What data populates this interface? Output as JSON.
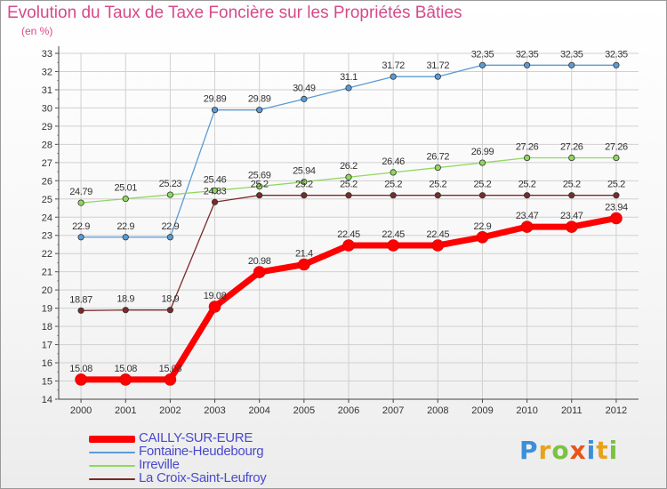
{
  "chart_data": {
    "type": "line",
    "title": "Evolution du Taux de Taxe Foncière sur les Propriétés Bâties",
    "ylabel": "(en %)",
    "xlabel": "",
    "x": [
      "2000",
      "2001",
      "2002",
      "2003",
      "2004",
      "2005",
      "2006",
      "2007",
      "2008",
      "2009",
      "2010",
      "2011",
      "2012"
    ],
    "ylim": [
      14,
      33
    ],
    "yticks": [
      14,
      15,
      16,
      17,
      18,
      19,
      20,
      21,
      22,
      23,
      24,
      25,
      26,
      27,
      28,
      29,
      30,
      31,
      32,
      33
    ],
    "grid": true,
    "legend_position": "bottom-left",
    "series": [
      {
        "name": "CAILLY-SUR-EURE",
        "color": "#ff0000",
        "values": [
          15.08,
          15.08,
          15.08,
          19.08,
          20.98,
          21.4,
          22.45,
          22.45,
          22.45,
          22.9,
          23.47,
          23.47,
          23.94
        ],
        "labels": [
          "15.08",
          "15.08",
          "15.08",
          "19.08",
          "20.98",
          "21.4",
          "22.45",
          "22.45",
          "22.45",
          "22.9",
          "23.47",
          "23.47",
          "23.94"
        ]
      },
      {
        "name": "Fontaine-Heudebourg",
        "color": "#5b9bd5",
        "values": [
          22.9,
          22.9,
          22.9,
          29.89,
          29.89,
          30.49,
          31.1,
          31.72,
          31.72,
          32.35,
          32.35,
          32.35,
          32.35
        ],
        "labels": [
          "22.9",
          "22.9",
          "22.9",
          "29.89",
          "29.89",
          "30.49",
          "31.1",
          "31.72",
          "31.72",
          "32.35",
          "32.35",
          "32.35",
          "32.35"
        ]
      },
      {
        "name": "Irreville",
        "color": "#90d760",
        "values": [
          24.79,
          25.01,
          25.23,
          25.46,
          25.69,
          25.94,
          26.2,
          26.46,
          26.72,
          26.99,
          27.26,
          27.26,
          27.26
        ],
        "labels": [
          "24.79",
          "25.01",
          "25.23",
          "25.46",
          "25.69",
          "25.94",
          "26.2",
          "26.46",
          "26.72",
          "26.99",
          "27.26",
          "27.26",
          "27.26"
        ]
      },
      {
        "name": "La Croix-Saint-Leufroy",
        "color": "#7a2a2a",
        "values": [
          18.87,
          18.9,
          18.9,
          24.83,
          25.2,
          25.2,
          25.2,
          25.2,
          25.2,
          25.2,
          25.2,
          25.2,
          25.2
        ],
        "labels": [
          "18.87",
          "18.9",
          "18.9",
          "24.83",
          "25.2",
          "25.2",
          "25.2",
          "25.2",
          "25.2",
          "25.2",
          "25.2",
          "25.2",
          "25.2"
        ]
      }
    ]
  },
  "logo": {
    "letters": [
      "P",
      "r",
      "o",
      "x",
      "i",
      "t",
      "i"
    ],
    "colors": [
      "#3b8fd9",
      "#e8a21b",
      "#7cc242",
      "#e8541b",
      "#3b8fd9",
      "#e8a21b",
      "#7cc242"
    ]
  }
}
